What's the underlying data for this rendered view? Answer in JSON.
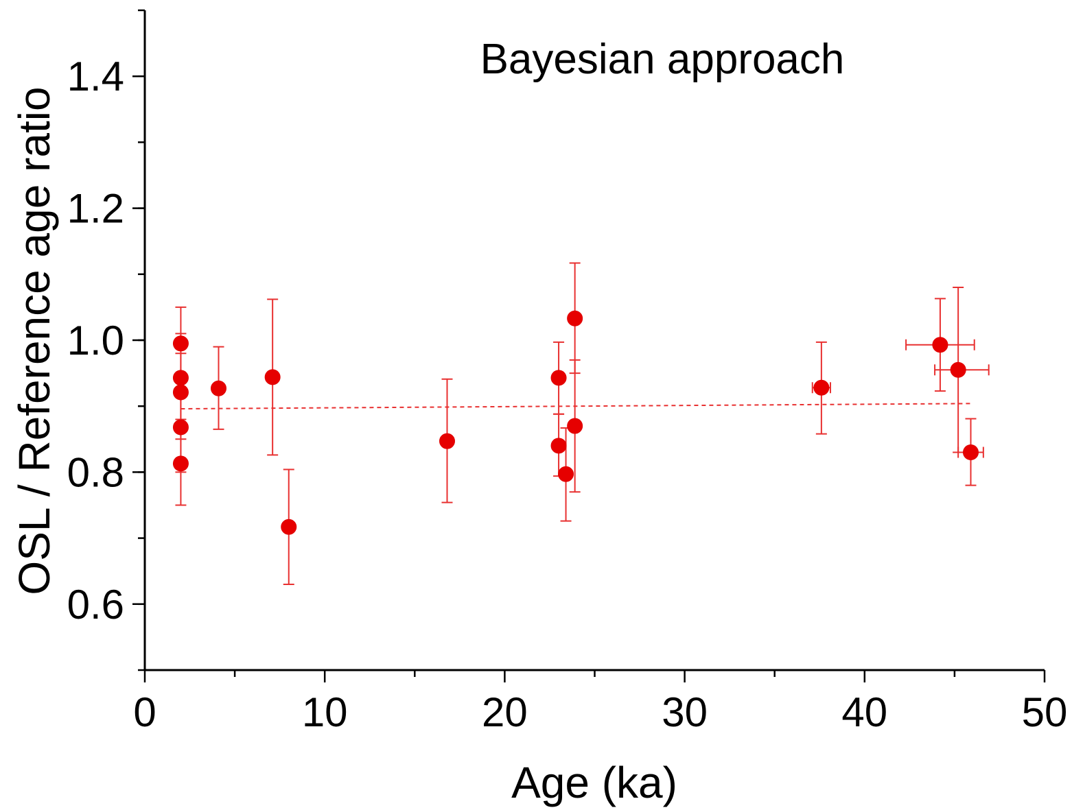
{
  "chart_data": {
    "type": "scatter",
    "title": "Bayesian approach",
    "xlabel": "Age (ka)",
    "ylabel": "OSL / Reference age ratio",
    "xlim": [
      0,
      50
    ],
    "ylim": [
      0.5,
      1.5
    ],
    "x_ticks": [
      "0",
      "10",
      "20",
      "30",
      "40",
      "50"
    ],
    "y_ticks": [
      "0.6",
      "0.8",
      "1.0",
      "1.2",
      "1.4"
    ],
    "x_tick_values": [
      0,
      10,
      20,
      30,
      40,
      50
    ],
    "y_tick_values": [
      0.6,
      0.8,
      1.0,
      1.2,
      1.4
    ],
    "grid": false,
    "point_color": "#e60000",
    "line_color": "#e83030",
    "points": [
      {
        "x": 2.0,
        "y": 0.995,
        "y_low": 0.92,
        "y_high": 1.05
      },
      {
        "x": 2.0,
        "y": 0.943,
        "y_low": 0.87,
        "y_high": 1.01
      },
      {
        "x": 2.0,
        "y": 0.921,
        "y_low": 0.85,
        "y_high": 0.98
      },
      {
        "x": 2.0,
        "y": 0.868,
        "y_low": 0.8,
        "y_high": 0.94
      },
      {
        "x": 2.0,
        "y": 0.813,
        "y_low": 0.75,
        "y_high": 0.88
      },
      {
        "x": 4.1,
        "y": 0.927,
        "y_low": 0.865,
        "y_high": 0.99
      },
      {
        "x": 7.1,
        "y": 0.944,
        "y_low": 0.826,
        "y_high": 1.062
      },
      {
        "x": 8.0,
        "y": 0.717,
        "y_low": 0.63,
        "y_high": 0.804
      },
      {
        "x": 16.8,
        "y": 0.847,
        "y_low": 0.754,
        "y_high": 0.941
      },
      {
        "x": 23.0,
        "y": 0.943,
        "y_low": 0.888,
        "y_high": 0.997
      },
      {
        "x": 23.0,
        "y": 0.84,
        "y_low": 0.794,
        "y_high": 0.888
      },
      {
        "x": 23.4,
        "y": 0.797,
        "y_low": 0.726,
        "y_high": 0.867
      },
      {
        "x": 23.9,
        "y": 1.033,
        "y_low": 0.95,
        "y_high": 1.117
      },
      {
        "x": 23.9,
        "y": 0.87,
        "y_low": 0.77,
        "y_high": 0.97
      },
      {
        "x": 37.6,
        "y": 0.928,
        "y_low": 0.858,
        "y_high": 0.997,
        "x_low": 37.1,
        "x_high": 38.1
      },
      {
        "x": 44.2,
        "y": 0.993,
        "y_low": 0.923,
        "y_high": 1.063,
        "x_low": 42.3,
        "x_high": 46.1
      },
      {
        "x": 45.2,
        "y": 0.955,
        "y_low": 0.83,
        "y_high": 1.08,
        "x_low": 43.9,
        "x_high": 46.9
      },
      {
        "x": 45.9,
        "y": 0.83,
        "y_low": 0.78,
        "y_high": 0.881,
        "x_low": 45.2,
        "x_high": 46.6
      }
    ],
    "trend_line": {
      "x": [
        2.0,
        46.0
      ],
      "y": [
        0.896,
        0.904
      ],
      "style": "dotted"
    }
  }
}
